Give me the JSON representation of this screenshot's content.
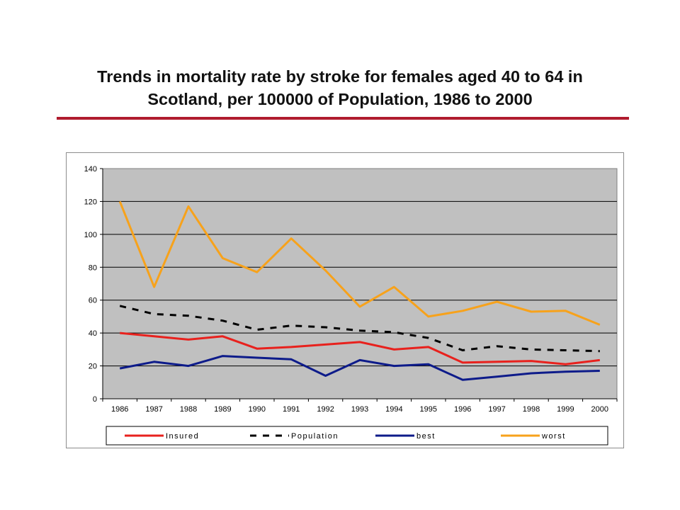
{
  "slide": {
    "title_line1": "Trends in mortality rate by stroke for females aged 40 to 64 in",
    "title_line2": "Scotland,  per 100000 of Population, 1986 to 2000",
    "rule_color": "#b01c2e"
  },
  "chart_data": {
    "type": "line",
    "title": "",
    "xlabel": "",
    "ylabel": "",
    "ylim": [
      0,
      140
    ],
    "yticks": [
      0,
      20,
      40,
      60,
      80,
      100,
      120,
      140
    ],
    "grid": true,
    "plot_background": "#c0c0c0",
    "legend_position": "bottom",
    "x": [
      "1986",
      "1987",
      "1988",
      "1989",
      "1990",
      "1991",
      "1992",
      "1993",
      "1994",
      "1995",
      "1996",
      "1997",
      "1998",
      "1999",
      "2000"
    ],
    "series": [
      {
        "name": "Insured",
        "color": "#e8211d",
        "dash": "solid",
        "values": [
          40,
          38,
          36,
          38,
          30.5,
          31.5,
          33,
          34.5,
          30,
          31.5,
          22,
          22.5,
          23,
          21,
          23.5
        ]
      },
      {
        "name": "Population",
        "color": "#000000",
        "dash": "dashed",
        "values": [
          56.5,
          51.5,
          50.5,
          47.5,
          42,
          44.5,
          43.5,
          41.5,
          40.5,
          37,
          29.5,
          32,
          30,
          29.5,
          29
        ]
      },
      {
        "name": "best",
        "color": "#0d1b8a",
        "dash": "solid",
        "values": [
          18.5,
          22.5,
          20,
          26,
          25,
          24,
          14,
          23.5,
          20,
          21,
          11.5,
          13.5,
          15.5,
          16.5,
          17
        ]
      },
      {
        "name": "worst",
        "color": "#f7a21b",
        "dash": "solid",
        "values": [
          120,
          68,
          117,
          85.5,
          77,
          97.5,
          78,
          56,
          68,
          50,
          53.5,
          59,
          53,
          53.5,
          45
        ]
      }
    ]
  }
}
